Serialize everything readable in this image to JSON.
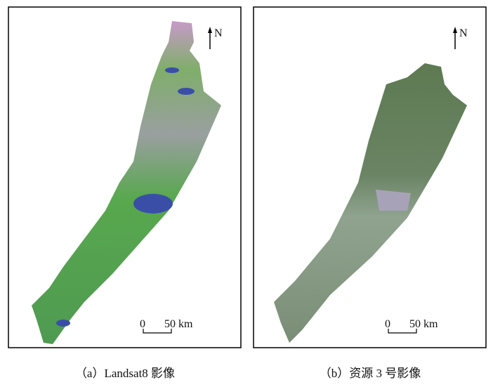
{
  "panels": [
    {
      "caption": "（a）Landsat8 影像",
      "north": "N",
      "scale_start": "0",
      "scale_end": "50 km"
    },
    {
      "caption": "（b）资源 3 号影像",
      "north": "N",
      "scale_start": "0",
      "scale_end": "50 km"
    }
  ]
}
